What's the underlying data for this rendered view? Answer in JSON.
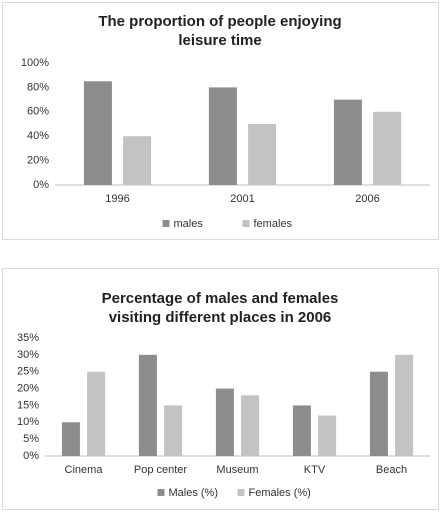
{
  "chart_data": [
    {
      "type": "bar",
      "title": "The proportion of people enjoying leisure time",
      "categories": [
        "1996",
        "2001",
        "2006"
      ],
      "series": [
        {
          "name": "males",
          "color": "#8c8c8c",
          "values": [
            85,
            80,
            70
          ]
        },
        {
          "name": "females",
          "color": "#c3c3c3",
          "values": [
            40,
            50,
            60
          ]
        }
      ],
      "ylim": [
        0,
        100
      ],
      "yticks": [
        {
          "value": 0,
          "label": "0%"
        },
        {
          "value": 20,
          "label": "20%"
        },
        {
          "value": 40,
          "label": "40%"
        },
        {
          "value": 60,
          "label": "60%"
        },
        {
          "value": 80,
          "label": "80%"
        },
        {
          "value": 100,
          "label": "100%"
        }
      ],
      "grid": false,
      "legend": "bottom"
    },
    {
      "type": "bar",
      "title": "Percentage of males and females visiting different places in 2006",
      "categories": [
        "Cinema",
        "Pop center",
        "Museum",
        "KTV",
        "Beach"
      ],
      "series": [
        {
          "name": "Males (%)",
          "color": "#8c8c8c",
          "values": [
            10,
            30,
            20,
            15,
            25
          ]
        },
        {
          "name": "Females (%)",
          "color": "#c3c3c3",
          "values": [
            25,
            15,
            18,
            12,
            30
          ]
        }
      ],
      "ylim": [
        0,
        35
      ],
      "yticks": [
        {
          "value": 0,
          "label": "0%"
        },
        {
          "value": 5,
          "label": "5%"
        },
        {
          "value": 10,
          "label": "10%"
        },
        {
          "value": 15,
          "label": "15%"
        },
        {
          "value": 20,
          "label": "20%"
        },
        {
          "value": 25,
          "label": "25%"
        },
        {
          "value": 30,
          "label": "30%"
        },
        {
          "value": 35,
          "label": "35%"
        }
      ],
      "grid": false,
      "legend": "bottom"
    }
  ]
}
